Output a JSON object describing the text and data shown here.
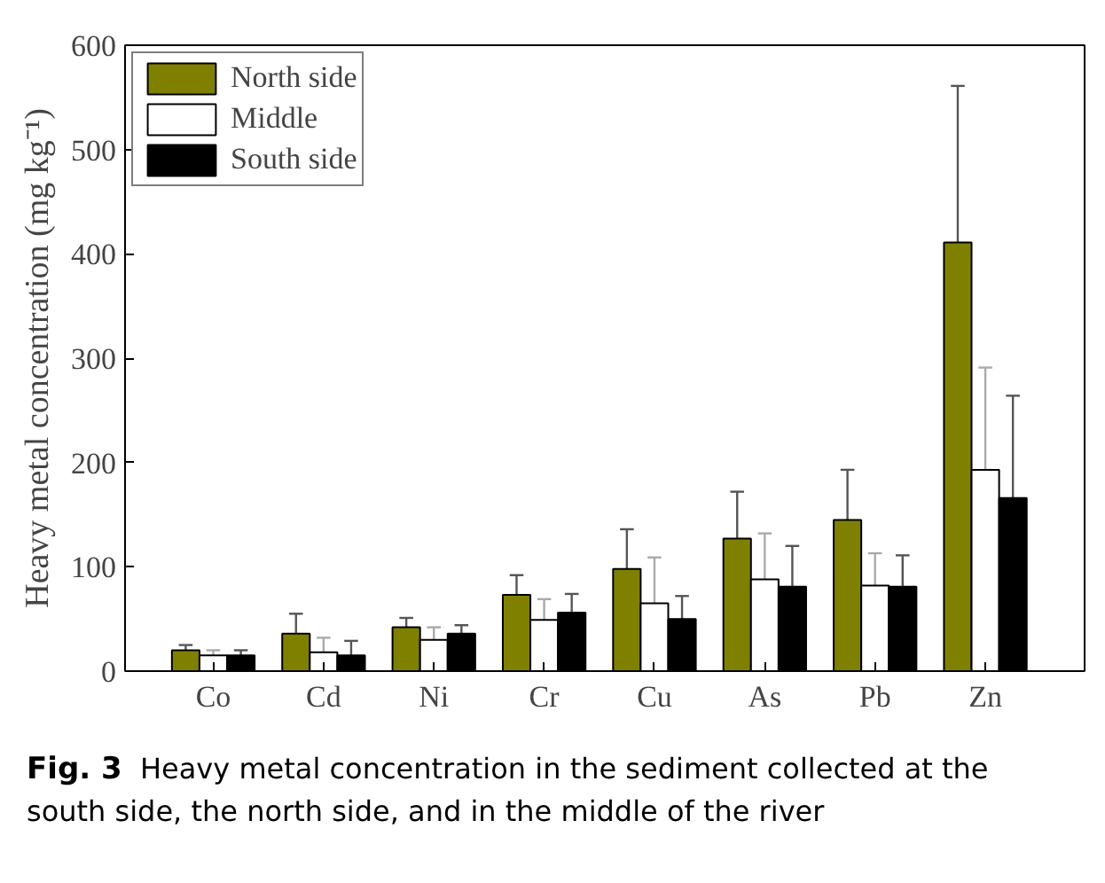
{
  "chart_data": {
    "type": "bar",
    "title": "Fig. 3",
    "ylabel": "Heavy metal concentration (mg kg⁻¹)",
    "categories": [
      "Co",
      "Cd",
      "Ni",
      "Cr",
      "Cu",
      "As",
      "Pb",
      "Zn"
    ],
    "series": [
      {
        "name": "North side",
        "color": "#808000",
        "values": [
          20,
          36,
          42,
          73,
          98,
          127,
          145,
          411
        ],
        "errors": [
          [
            20,
            25
          ],
          [
            36,
            55
          ],
          [
            42,
            51
          ],
          [
            73,
            92
          ],
          [
            98,
            136
          ],
          [
            127,
            172
          ],
          [
            145,
            193
          ],
          [
            411,
            561
          ]
        ]
      },
      {
        "name": "Middle",
        "color": "#ffffff",
        "values": [
          15,
          18,
          30,
          49,
          65,
          88,
          82,
          193
        ],
        "errors": [
          [
            15,
            20
          ],
          [
            18,
            32
          ],
          [
            30,
            42
          ],
          [
            49,
            69
          ],
          [
            65,
            109
          ],
          [
            88,
            132
          ],
          [
            82,
            113
          ],
          [
            193,
            291
          ]
        ]
      },
      {
        "name": "South side",
        "color": "#000000",
        "values": [
          15,
          15,
          36,
          56,
          50,
          81,
          81,
          166
        ],
        "errors": [
          [
            15,
            20
          ],
          [
            15,
            29
          ],
          [
            36,
            44
          ],
          [
            56,
            74
          ],
          [
            50,
            72
          ],
          [
            81,
            120
          ],
          [
            81,
            111
          ],
          [
            166,
            264
          ]
        ]
      }
    ],
    "ylim": [
      0,
      600
    ],
    "yticks": [
      0,
      100,
      200,
      300,
      400,
      500,
      600
    ],
    "legend": "top left",
    "grid": false,
    "annotations": [
      "Heavy metal concentration in the sediment collected at the south side, the north side, and in the middle of the river"
    ]
  }
}
